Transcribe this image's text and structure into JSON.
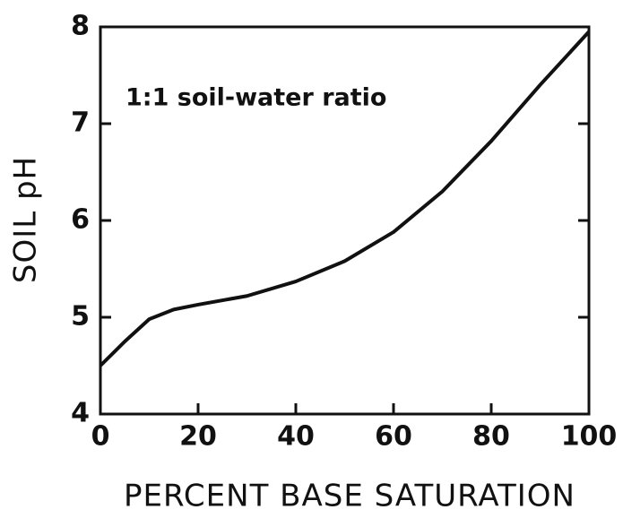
{
  "chart_data": {
    "type": "line",
    "annotation": "1:1 soil-water ratio",
    "x_label": "PERCENT BASE SATURATION",
    "y_label": "SOIL pH",
    "x": [
      0,
      5,
      10,
      15,
      20,
      30,
      40,
      50,
      60,
      70,
      80,
      90,
      100
    ],
    "series": [
      {
        "name": "Soil pH",
        "color": "#111111",
        "values": [
          4.5,
          4.75,
          4.98,
          5.08,
          5.13,
          5.22,
          5.37,
          5.58,
          5.88,
          6.3,
          6.82,
          7.4,
          7.95
        ]
      }
    ],
    "xlim": [
      0,
      100
    ],
    "xticks": [
      0,
      20,
      40,
      60,
      80,
      100
    ],
    "ylim": [
      4,
      8
    ],
    "yticks": [
      4,
      5,
      6,
      7,
      8
    ],
    "grid": false
  }
}
